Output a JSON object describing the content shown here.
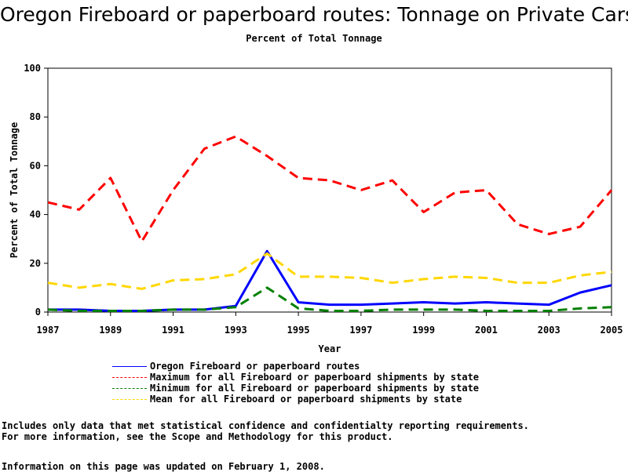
{
  "page": {
    "title": "Oregon Fireboard or paperboard routes: Tonnage on Private Cars",
    "subtitle": "Percent of Total Tonnage",
    "notes": [
      "Includes only data that met statistical confidence and confidentialty reporting requirements.",
      "For more information, see the Scope and Methodology for this product."
    ],
    "updated": "Information on this page was updated on February 1, 2008."
  },
  "chart_data": {
    "type": "line",
    "title": "Oregon Fireboard or paperboard routes: Tonnage on Private Cars",
    "subtitle": "Percent of Total Tonnage",
    "xlabel": "Year",
    "ylabel": "Percent of Total Tonnage",
    "xlim": [
      1987,
      2005
    ],
    "ylim": [
      0,
      100
    ],
    "x_ticks": [
      "1987",
      "1989",
      "1991",
      "1993",
      "1995",
      "1997",
      "1999",
      "2001",
      "2003",
      "2005"
    ],
    "y_ticks": [
      "0",
      "20",
      "40",
      "60",
      "80",
      "100"
    ],
    "grid": false,
    "legend_position": "bottom",
    "x": [
      1987,
      1988,
      1989,
      1990,
      1991,
      1992,
      1993,
      1994,
      1995,
      1996,
      1997,
      1998,
      1999,
      2000,
      2001,
      2002,
      2003,
      2004,
      2005
    ],
    "series": [
      {
        "name": "Oregon Fireboard or paperboard routes",
        "color": "#0000ff",
        "dash": "solid",
        "values": [
          1,
          1,
          0.5,
          0.5,
          1,
          1,
          2.5,
          25,
          4,
          3,
          3,
          3.5,
          4,
          3.5,
          4,
          3.5,
          3,
          8,
          11
        ]
      },
      {
        "name": "Maximum for all Fireboard or paperboard shipments by state",
        "color": "#ff0000",
        "dash": "dashed",
        "values": [
          45,
          42,
          55,
          29,
          50,
          67,
          72,
          64,
          55,
          54,
          50,
          54,
          41,
          49,
          50,
          36,
          32,
          35,
          50
        ]
      },
      {
        "name": "Minimum for all Fireboard or paperboard shipments by state",
        "color": "#008000",
        "dash": "dashed",
        "values": [
          1,
          0.5,
          0.5,
          0.5,
          1,
          1,
          2,
          10,
          1.5,
          0.5,
          0.5,
          1,
          1,
          1,
          0.5,
          0.5,
          0.5,
          1.5,
          2
        ]
      },
      {
        "name": "Mean for all Fireboard or paperboard shipments by state",
        "color": "#ffd700",
        "dash": "dashed",
        "values": [
          12,
          10,
          11.5,
          9.5,
          13,
          13.5,
          15.5,
          24,
          14.5,
          14.5,
          14,
          12,
          13.5,
          14.5,
          14,
          12,
          12,
          15,
          16.5
        ]
      }
    ]
  }
}
